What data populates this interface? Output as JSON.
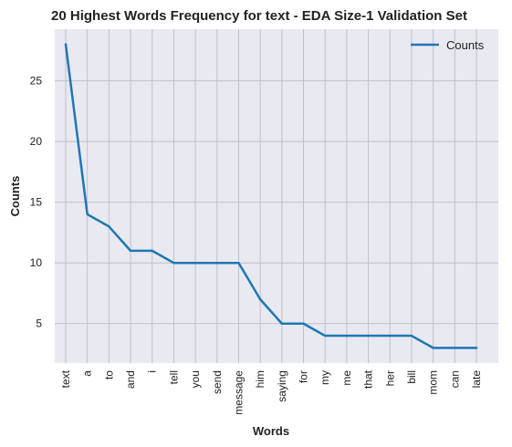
{
  "chart_data": {
    "type": "line",
    "title": "20 Highest Words Frequency for text - EDA Size-1 Validation Set",
    "xlabel": "Words",
    "ylabel": "Counts",
    "categories": [
      "text",
      "a",
      "to",
      "and",
      "i",
      "tell",
      "you",
      "send",
      "message",
      "him",
      "saying",
      "for",
      "my",
      "me",
      "that",
      "her",
      "bill",
      "mom",
      "can",
      "late"
    ],
    "series": [
      {
        "name": "Counts",
        "values": [
          28,
          14,
          13,
          11,
          11,
          10,
          10,
          10,
          10,
          7,
          5,
          5,
          4,
          4,
          4,
          4,
          4,
          3,
          3,
          3
        ],
        "color": "#1f77b4"
      }
    ],
    "ylim": [
      1.75,
      29.25
    ],
    "yticks": [
      5,
      10,
      15,
      20,
      25
    ],
    "grid": true,
    "legend_position": "top-right",
    "background_color": "#e9e9f2",
    "grid_color": "#c0c0c8"
  }
}
